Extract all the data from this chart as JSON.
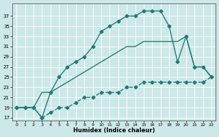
{
  "xlabel": "Humidex (Indice chaleur)",
  "bg_color": "#cce8e8",
  "line_color": "#1e7b70",
  "grid_color": "#b8d8d8",
  "xlim": [
    -0.5,
    23.5
  ],
  "ylim": [
    16.5,
    39.5
  ],
  "yticks": [
    17,
    19,
    21,
    23,
    25,
    27,
    29,
    31,
    33,
    35,
    37
  ],
  "xticks": [
    0,
    1,
    2,
    3,
    4,
    5,
    6,
    7,
    8,
    9,
    10,
    11,
    12,
    13,
    14,
    15,
    16,
    17,
    18,
    19,
    20,
    21,
    22,
    23
  ],
  "line1_x": [
    0,
    1,
    2,
    3,
    4,
    5,
    6,
    7,
    8,
    9,
    10,
    11,
    12,
    13,
    14,
    15,
    16,
    17,
    18,
    19,
    20,
    21,
    22,
    23
  ],
  "line1_y": [
    19,
    19,
    19,
    17,
    22,
    25,
    27,
    28,
    29,
    31,
    34,
    35,
    36,
    37,
    37,
    38,
    38,
    38,
    35,
    28,
    33,
    27,
    27,
    25
  ],
  "line2_x": [
    0,
    1,
    2,
    3,
    4,
    5,
    6,
    7,
    8,
    9,
    10,
    11,
    12,
    13,
    14,
    15,
    16,
    17,
    18,
    19,
    20,
    21,
    22,
    23
  ],
  "line2_y": [
    19,
    19,
    19,
    22,
    22,
    23,
    24,
    25,
    26,
    27,
    28,
    29,
    30,
    31,
    31,
    32,
    32,
    32,
    32,
    32,
    33,
    27,
    27,
    25
  ],
  "line3_x": [
    0,
    1,
    2,
    3,
    4,
    5,
    6,
    7,
    8,
    9,
    10,
    11,
    12,
    13,
    14,
    15,
    16,
    17,
    18,
    19,
    20,
    21,
    22,
    23
  ],
  "line3_y": [
    19,
    19,
    19,
    17,
    18,
    19,
    19,
    20,
    21,
    21,
    22,
    22,
    22,
    23,
    23,
    24,
    24,
    24,
    24,
    24,
    24,
    24,
    24,
    25
  ],
  "markersize": 2.5,
  "linewidth": 1.0
}
